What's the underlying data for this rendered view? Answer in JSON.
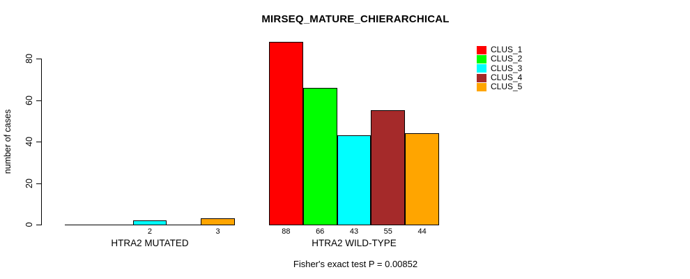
{
  "chart_data": {
    "type": "bar",
    "title": "MIRSEQ_MATURE_CHIERARCHICAL",
    "xlabel": "",
    "ylabel": "number of cases",
    "ylim": [
      0,
      88
    ],
    "yticks": [
      0,
      20,
      40,
      60,
      80
    ],
    "grid": false,
    "legend_position": "top-right",
    "annotation": "Fisher's exact test P = 0.00852",
    "series": [
      {
        "name": "CLUS_1",
        "color": "#FF0000"
      },
      {
        "name": "CLUS_2",
        "color": "#00FF00"
      },
      {
        "name": "CLUS_3",
        "color": "#00FFFF"
      },
      {
        "name": "CLUS_4",
        "color": "#A52A2A"
      },
      {
        "name": "CLUS_5",
        "color": "#FFA500"
      }
    ],
    "groups": [
      {
        "label": "HTRA2 MUTATED",
        "values": [
          0,
          0,
          2,
          0,
          3
        ]
      },
      {
        "label": "HTRA2 WILD-TYPE",
        "values": [
          88,
          66,
          43,
          55,
          44
        ]
      }
    ]
  }
}
